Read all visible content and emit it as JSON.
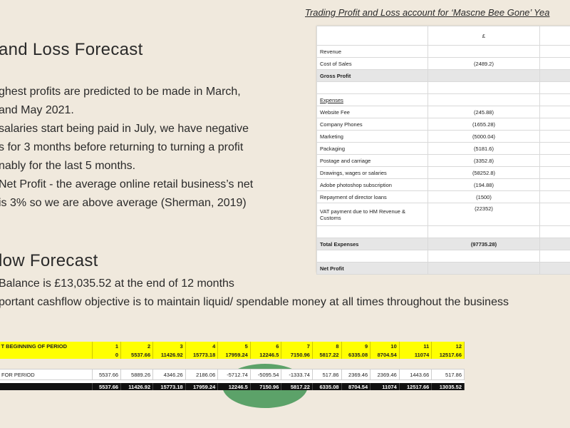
{
  "caption": "Trading Profit and Loss account for ‘Mascne Bee Gone’ Yea",
  "profit_loss": {
    "heading": "and Loss Forecast",
    "lines": [
      "ghest profits are predicted to be made in March,",
      "and May 2021.",
      "salaries start being paid in July, we have negative",
      "s for 3 months before returning to turning a profit",
      "nably for the last 5 months.",
      "Net Profit - the average online retail business’s net",
      "is 3% so we are above average (Sherman, 2019)"
    ]
  },
  "cashflow": {
    "heading": "low Forecast",
    "lines": [
      "Balance is £13,035.52 at the end of 12 months",
      "portant cashflow objective is to maintain liquid/ spendable money at all times throughout the business"
    ]
  },
  "pl_table": {
    "currency_header": "£",
    "rows": [
      {
        "label": "Revenue",
        "value": ""
      },
      {
        "label": "Cost of Sales",
        "value": "(2489.2)"
      },
      {
        "label": "Gross Profit",
        "value": ""
      },
      {
        "label": "",
        "value": ""
      },
      {
        "label": "Expenses",
        "value": ""
      },
      {
        "label": "Website Fee",
        "value": "(245.88)"
      },
      {
        "label": "Company Phones",
        "value": "(1655.28)"
      },
      {
        "label": "Marketing",
        "value": "(5000.04)"
      },
      {
        "label": "Packaging",
        "value": "(5181.6)"
      },
      {
        "label": "Postage and carriage",
        "value": "(3352.8)"
      },
      {
        "label": "Drawings, wages or salaries",
        "value": "(58252.8)"
      },
      {
        "label": "Adobe photoshop subscription",
        "value": "(194.88)"
      },
      {
        "label": "Repayment of director loans",
        "value": "(1500)"
      },
      {
        "label": "VAT payment due to HM Revenue & Customs",
        "value": "(22352)"
      },
      {
        "label": "",
        "value": ""
      },
      {
        "label": "Total Expenses",
        "value": "(97735.28)"
      },
      {
        "label": "",
        "value": ""
      },
      {
        "label": "Net Profit",
        "value": ""
      }
    ]
  },
  "cf_table": {
    "row1_label": "T BEGINNING OF PERIOD",
    "months": [
      "1",
      "2",
      "3",
      "4",
      "5",
      "6",
      "7",
      "8",
      "9",
      "10",
      "11",
      "12"
    ],
    "opening": [
      "0",
      "5537.66",
      "11426.92",
      "15773.18",
      "17959.24",
      "12246.5",
      "7150.96",
      "5817.22",
      "6335.08",
      "8704.54",
      "11074",
      "12517.66"
    ],
    "row3_label": "FOR PERIOD",
    "period": [
      "5537.66",
      "5889.26",
      "4346.26",
      "2186.06",
      "-5712.74",
      "-5095.54",
      "-1333.74",
      "517.86",
      "2369.46",
      "2369.46",
      "1443.66",
      "517.86"
    ],
    "closing": [
      "5537.66",
      "11426.92",
      "15773.18",
      "17959.24",
      "12246.5",
      "7150.96",
      "5817.22",
      "6335.08",
      "8704.54",
      "11074",
      "12517.66",
      "13035.52"
    ]
  }
}
